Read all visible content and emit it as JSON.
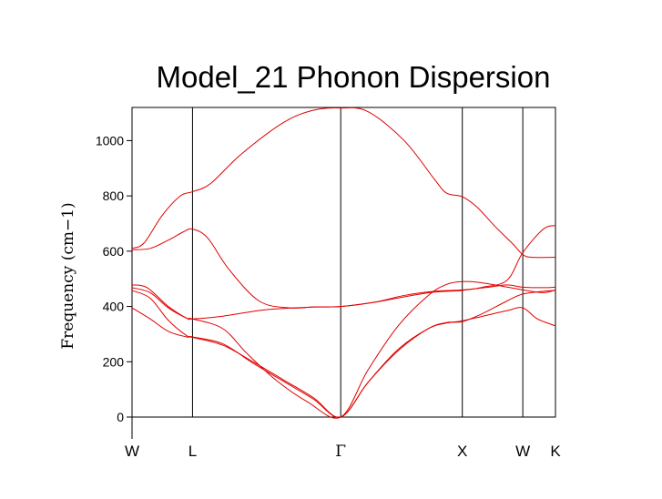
{
  "chart_data": {
    "type": "line",
    "title": "Model_21 Phonon Dispersion",
    "ylabel": "Frequency (cm−1)",
    "xlabel": "",
    "ylim": [
      0,
      1120
    ],
    "yticks": [
      0,
      200,
      400,
      600,
      800,
      1000
    ],
    "xlim": [
      0,
      7
    ],
    "high_symmetry_points": [
      {
        "label": "W",
        "x": 0
      },
      {
        "label": "L",
        "x": 1
      },
      {
        "label": "Γ",
        "x": 3.45
      },
      {
        "label": "X",
        "x": 5.46
      },
      {
        "label": "W",
        "x": 6.46
      },
      {
        "label": "K",
        "x": 7
      }
    ],
    "line_color": "#e00000",
    "series": [
      {
        "values": [
          [
            0,
            610
          ],
          [
            0.2,
            630
          ],
          [
            0.5,
            730
          ],
          [
            0.8,
            800
          ],
          [
            1,
            815
          ],
          [
            1.3,
            845
          ],
          [
            1.8,
            950
          ],
          [
            2.5,
            1065
          ],
          [
            3.0,
            1110
          ],
          [
            3.45,
            1118
          ],
          [
            3.9,
            1105
          ],
          [
            4.5,
            1000
          ],
          [
            5.0,
            860
          ],
          [
            5.2,
            810
          ],
          [
            5.46,
            797
          ],
          [
            5.7,
            760
          ],
          [
            6.0,
            690
          ],
          [
            6.3,
            625
          ],
          [
            6.46,
            588
          ],
          [
            6.6,
            578
          ],
          [
            7,
            578
          ]
        ]
      },
      {
        "values": [
          [
            0,
            605
          ],
          [
            0.3,
            610
          ],
          [
            0.6,
            640
          ],
          [
            0.85,
            670
          ],
          [
            1,
            680
          ],
          [
            1.25,
            648
          ],
          [
            1.6,
            535
          ],
          [
            2.1,
            420
          ],
          [
            2.6,
            395
          ],
          [
            3.0,
            398
          ],
          [
            3.45,
            400
          ],
          [
            4.0,
            415
          ],
          [
            4.5,
            435
          ],
          [
            5.0,
            452
          ],
          [
            5.46,
            458
          ],
          [
            5.8,
            470
          ],
          [
            6.2,
            495
          ],
          [
            6.46,
            595
          ],
          [
            6.8,
            680
          ],
          [
            7,
            693
          ]
        ]
      },
      {
        "values": [
          [
            0,
            478
          ],
          [
            0.25,
            468
          ],
          [
            0.6,
            400
          ],
          [
            0.9,
            358
          ],
          [
            1,
            355
          ],
          [
            1.5,
            365
          ],
          [
            2.2,
            388
          ],
          [
            3.0,
            398
          ],
          [
            3.45,
            400
          ],
          [
            4.0,
            415
          ],
          [
            4.5,
            440
          ],
          [
            5.0,
            455
          ],
          [
            5.46,
            460
          ],
          [
            5.9,
            470
          ],
          [
            6.2,
            478
          ],
          [
            6.46,
            470
          ],
          [
            6.8,
            468
          ],
          [
            7,
            470
          ]
        ]
      },
      {
        "values": [
          [
            0,
            468
          ],
          [
            0.3,
            450
          ],
          [
            0.6,
            395
          ],
          [
            0.9,
            358
          ],
          [
            1,
            355
          ],
          [
            1.5,
            320
          ],
          [
            1.9,
            230
          ],
          [
            2.4,
            130
          ],
          [
            2.9,
            55
          ],
          [
            3.45,
            0
          ],
          [
            3.9,
            170
          ],
          [
            4.4,
            330
          ],
          [
            4.9,
            440
          ],
          [
            5.2,
            480
          ],
          [
            5.46,
            490
          ],
          [
            5.7,
            488
          ],
          [
            6.0,
            478
          ],
          [
            6.46,
            460
          ],
          [
            6.8,
            450
          ],
          [
            7,
            460
          ]
        ]
      },
      {
        "values": [
          [
            0,
            458
          ],
          [
            0.3,
            430
          ],
          [
            0.6,
            350
          ],
          [
            0.9,
            295
          ],
          [
            1,
            290
          ],
          [
            1.5,
            265
          ],
          [
            2.0,
            195
          ],
          [
            2.5,
            130
          ],
          [
            3.0,
            65
          ],
          [
            3.45,
            0
          ],
          [
            3.9,
            125
          ],
          [
            4.4,
            240
          ],
          [
            4.9,
            320
          ],
          [
            5.2,
            342
          ],
          [
            5.46,
            345
          ],
          [
            5.8,
            375
          ],
          [
            6.2,
            420
          ],
          [
            6.46,
            445
          ],
          [
            6.8,
            455
          ],
          [
            7,
            458
          ]
        ]
      },
      {
        "values": [
          [
            0,
            395
          ],
          [
            0.3,
            355
          ],
          [
            0.6,
            310
          ],
          [
            0.9,
            290
          ],
          [
            1,
            288
          ],
          [
            1.5,
            260
          ],
          [
            2.0,
            200
          ],
          [
            2.5,
            135
          ],
          [
            3.0,
            70
          ],
          [
            3.45,
            0
          ],
          [
            3.9,
            125
          ],
          [
            4.4,
            245
          ],
          [
            4.9,
            320
          ],
          [
            5.2,
            340
          ],
          [
            5.46,
            348
          ],
          [
            5.8,
            365
          ],
          [
            6.2,
            385
          ],
          [
            6.46,
            395
          ],
          [
            6.7,
            355
          ],
          [
            7,
            330
          ]
        ]
      }
    ]
  }
}
